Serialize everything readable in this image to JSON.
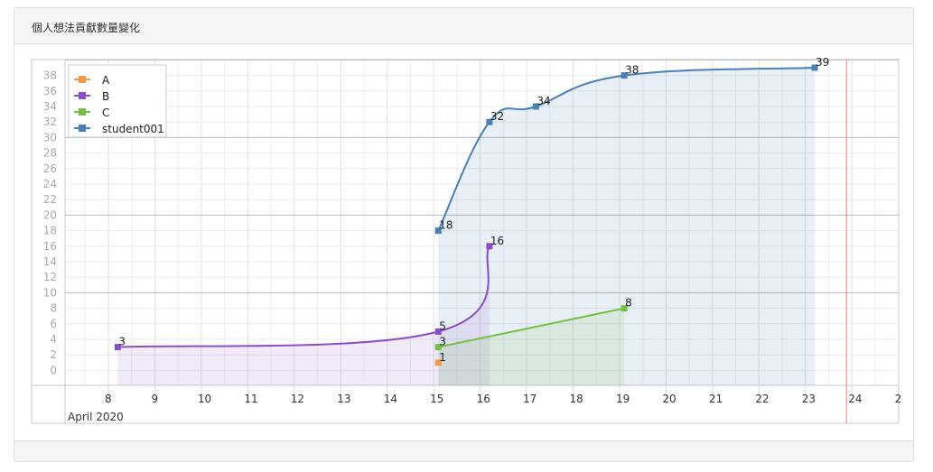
{
  "panel": {
    "title": "個人想法貢獻數量變化"
  },
  "chart_data": {
    "type": "line",
    "title": "個人想法貢獻數量變化",
    "x_axis_caption": "April 2020",
    "x_ticks": [
      "8",
      "9",
      "10",
      "11",
      "12",
      "13",
      "14",
      "15",
      "16",
      "17",
      "18",
      "19",
      "20",
      "21",
      "22",
      "23",
      "24",
      "2"
    ],
    "y_ticks": [
      "0",
      "2",
      "4",
      "6",
      "8",
      "10",
      "12",
      "14",
      "16",
      "18",
      "20",
      "22",
      "24",
      "26",
      "28",
      "30",
      "32",
      "34",
      "36",
      "38"
    ],
    "xlim": [
      7,
      25
    ],
    "ylim": [
      -2,
      40
    ],
    "marker_line_x": 24,
    "legend_position": "top-left",
    "grid": true,
    "series": [
      {
        "name": "A",
        "color": "#f29a4a",
        "x": [
          15.1
        ],
        "y": [
          1
        ],
        "labels": [
          "1"
        ]
      },
      {
        "name": "B",
        "color": "#8a4fc7",
        "x": [
          8.2,
          15.1,
          16.2
        ],
        "y": [
          3,
          5,
          16
        ],
        "labels": [
          "3",
          "5",
          "16"
        ]
      },
      {
        "name": "C",
        "color": "#74c045",
        "x": [
          15.1,
          19.1
        ],
        "y": [
          3,
          8
        ],
        "labels": [
          "3",
          "8"
        ]
      },
      {
        "name": "student001",
        "color": "#4a7fb8",
        "x": [
          15.1,
          16.2,
          17.2,
          19.1,
          23.2
        ],
        "y": [
          18,
          32,
          34,
          38,
          39
        ],
        "labels": [
          "18",
          "32",
          "34",
          "38",
          "39"
        ]
      }
    ]
  }
}
